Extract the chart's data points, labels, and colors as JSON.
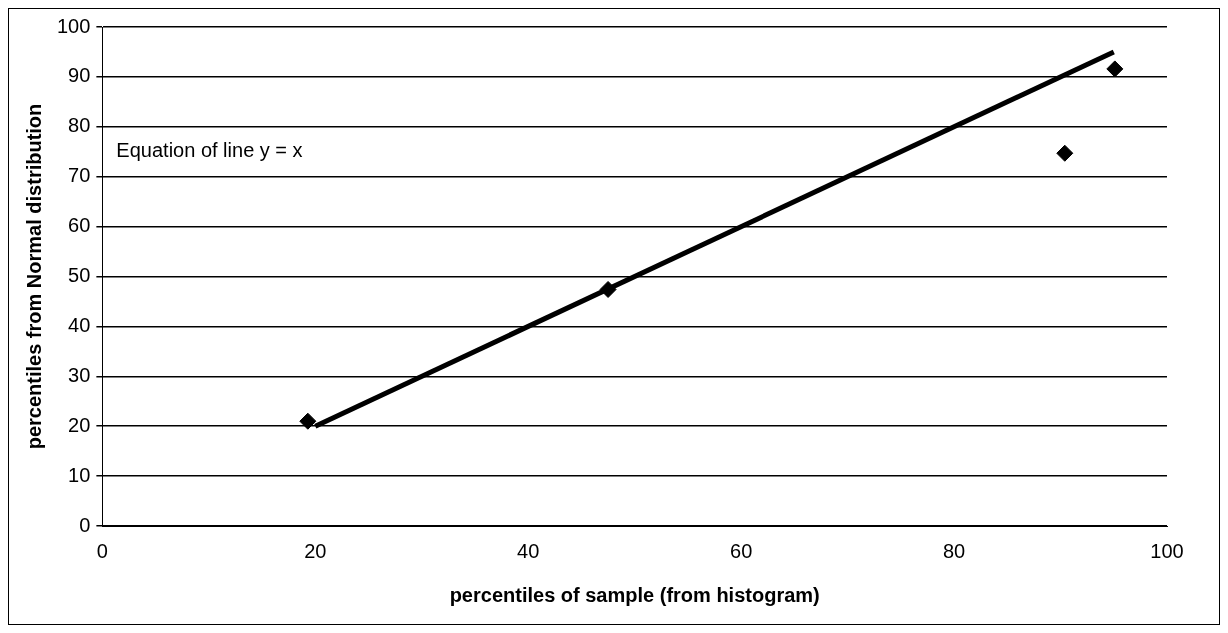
{
  "chart_data": {
    "type": "scatter",
    "xlabel": "percentiles of sample (from histogram)",
    "ylabel": "percentiles from Normal distribution",
    "series": [
      {
        "type": "scatter",
        "color": "#000000",
        "marker": "diamond",
        "x": [
          19.3,
          47.5,
          90.4,
          95.1
        ],
        "values": [
          21,
          47.4,
          74.7,
          91.6
        ]
      },
      {
        "type": "line",
        "color": "#000000",
        "marker": "none",
        "line_style": "solid",
        "x": [
          20,
          95
        ],
        "values": [
          20,
          95
        ]
      }
    ],
    "annotations": [
      "Equation of line y = x"
    ],
    "xlim": [
      0,
      100
    ],
    "xticks": [
      0,
      20,
      40,
      60,
      80,
      100
    ],
    "ylim": [
      0,
      100
    ],
    "yticks": [
      0,
      10,
      20,
      30,
      40,
      50,
      60,
      70,
      80,
      90,
      100
    ],
    "grid": "y",
    "legend": false
  }
}
